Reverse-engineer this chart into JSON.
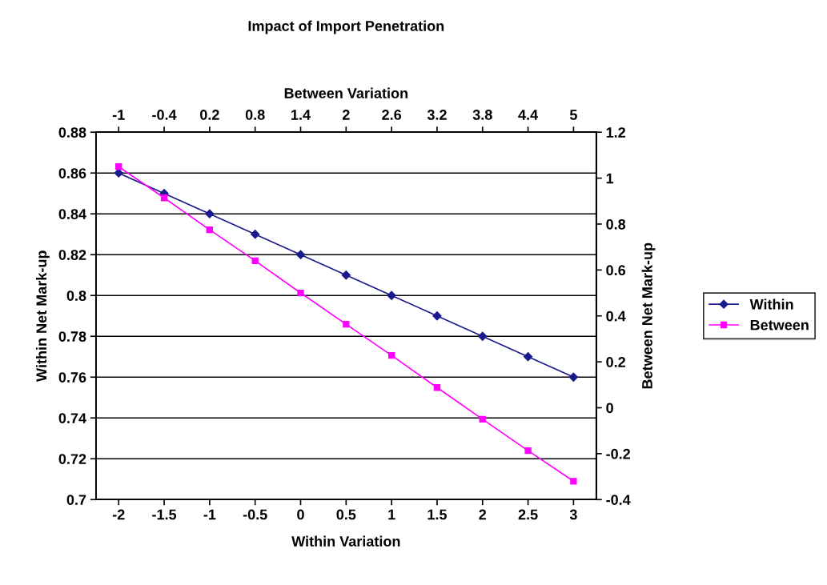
{
  "chart_data": {
    "type": "line",
    "title": "Impact of Import Penetration",
    "xlabel": "Within Variation",
    "x2label": "Between Variation",
    "ylabel": "Within Net Mark-up",
    "y2label": "Between Net Mark-up",
    "x": [
      -2,
      -1.5,
      -1,
      -0.5,
      0,
      0.5,
      1,
      1.5,
      2,
      2.5,
      3
    ],
    "xlim": [
      -2.25,
      3.25
    ],
    "xticks": [
      -2,
      -1.5,
      -1,
      -0.5,
      0,
      0.5,
      1,
      1.5,
      2,
      2.5,
      3
    ],
    "x2lim": [
      -1.3,
      5.3
    ],
    "x2ticks": [
      -1,
      -0.4,
      0.2,
      0.8,
      1.4,
      2,
      2.6,
      3.2,
      3.8,
      4.4,
      5
    ],
    "ylim": [
      0.7,
      0.88
    ],
    "yticks": [
      0.7,
      0.72,
      0.74,
      0.76,
      0.78,
      0.8,
      0.82,
      0.84,
      0.86,
      0.88
    ],
    "y2lim": [
      -0.4,
      1.2
    ],
    "y2ticks": [
      -0.4,
      -0.2,
      0,
      0.2,
      0.4,
      0.6,
      0.8,
      1,
      1.2
    ],
    "grid": "y",
    "legend": "right",
    "line_style": "solid",
    "series": [
      {
        "name": "Within",
        "color": "#1a1a8c",
        "marker": "diamond",
        "values": [
          0.86,
          0.85,
          0.84,
          0.83,
          0.82,
          0.81,
          0.8,
          0.79,
          0.78,
          0.77,
          0.76
        ]
      },
      {
        "name": "Between",
        "color": "#ff00ff",
        "marker": "square",
        "axis": "y2",
        "values": [
          1.05,
          0.914,
          0.775,
          0.64,
          0.5,
          0.364,
          0.228,
          0.088,
          -0.05,
          -0.187,
          -0.32
        ]
      }
    ]
  }
}
